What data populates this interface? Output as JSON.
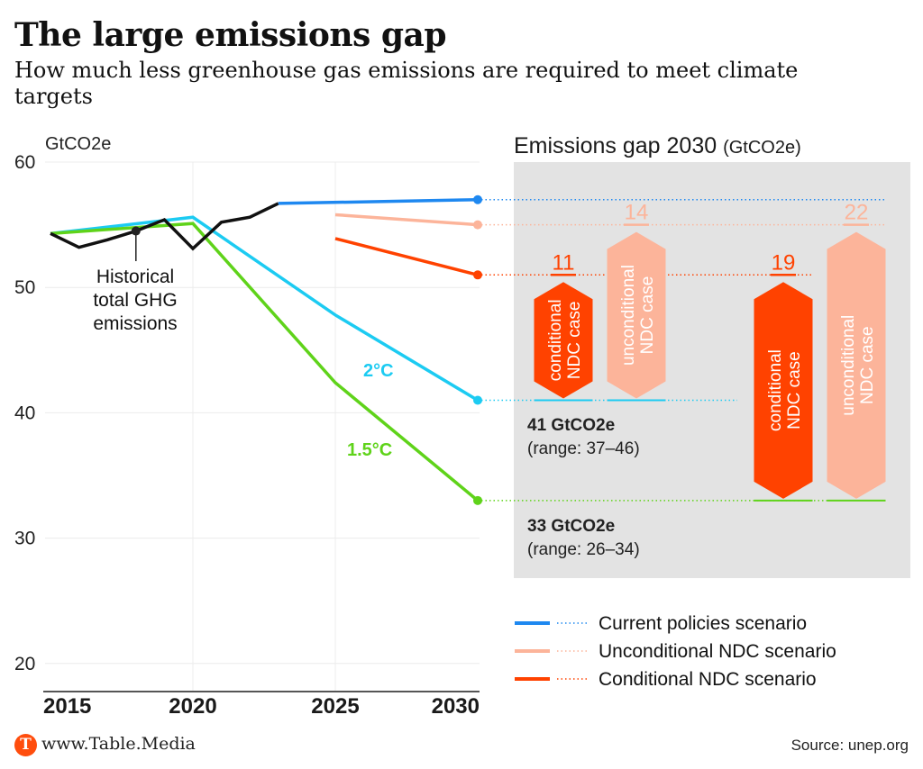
{
  "header": {
    "title": "The large emissions gap",
    "subtitle": "How much less greenhouse gas emissions are required to meet climate targets"
  },
  "footer": {
    "logo_letter": "T",
    "brand": "www.Table.Media",
    "source": "Source: unep.org"
  },
  "colors": {
    "current_policies": "#1e88f0",
    "unconditional": "#fcb49a",
    "conditional": "#ff4200",
    "two_degree": "#1ccbf2",
    "one_five_degree": "#5fd31a",
    "historical": "#111111",
    "gap_panel_bg": "#e3e3e3",
    "brand": "#ff4d0d"
  },
  "chart_data": {
    "type": "line",
    "title": "The large emissions gap",
    "ylabel": "GtCO2e",
    "xlabel": "",
    "xlim": [
      2015,
      2030
    ],
    "ylim": [
      17.5,
      60
    ],
    "x_ticks": [
      2015,
      2020,
      2025,
      2030
    ],
    "y_ticks": [
      20,
      30,
      40,
      50,
      60
    ],
    "grid": true,
    "series": [
      {
        "name": "Historical total GHG emissions",
        "key": "historical",
        "x": [
          2015,
          2016,
          2017,
          2018,
          2019,
          2020,
          2021,
          2022,
          2023
        ],
        "y": [
          54.3,
          53.2,
          53.8,
          54.5,
          55.4,
          53.1,
          55.2,
          55.6,
          56.7
        ]
      },
      {
        "name": "2°C",
        "key": "two_degree",
        "x": [
          2015,
          2020,
          2025,
          2030
        ],
        "y": [
          54.3,
          55.6,
          47.8,
          41
        ]
      },
      {
        "name": "1.5°C",
        "key": "one_five_degree",
        "x": [
          2015,
          2020,
          2025,
          2030
        ],
        "y": [
          54.3,
          55.1,
          42.4,
          33
        ]
      },
      {
        "name": "Current policies scenario",
        "key": "current_policies",
        "x": [
          2023,
          2030
        ],
        "y": [
          56.7,
          57
        ]
      },
      {
        "name": "Unconditional NDC scenario",
        "key": "unconditional",
        "x": [
          2025,
          2030
        ],
        "y": [
          55.8,
          55
        ]
      },
      {
        "name": "Conditional NDC scenario",
        "key": "conditional",
        "x": [
          2025,
          2030
        ],
        "y": [
          53.9,
          51
        ]
      }
    ],
    "annotations": {
      "historical_label": [
        "Historical",
        "total GHG",
        "emissions"
      ],
      "historical_marker": {
        "x": 2018,
        "y": 54.5
      },
      "two_degree_label": "2°C",
      "one_five_label": "1.5°C"
    },
    "gap_panel": {
      "title": "Emissions gap 2030",
      "title_unit": "(GtCO2e)",
      "targets": [
        {
          "key": "two_degree",
          "value": 41,
          "label": "41 GtCO2e",
          "range": "(range: 37–46)"
        },
        {
          "key": "one_five_degree",
          "value": 33,
          "label": "33 GtCO2e",
          "range": "(range: 26–34)"
        }
      ],
      "gaps": [
        {
          "target": "two_degree",
          "scenario": "conditional",
          "from": 51,
          "to": 41,
          "value": "11",
          "label_line1": "conditional",
          "label_line2": "NDC case"
        },
        {
          "target": "two_degree",
          "scenario": "unconditional",
          "from": 55,
          "to": 41,
          "value": "14",
          "label_line1": "unconditional",
          "label_line2": "NDC case"
        },
        {
          "target": "one_five_degree",
          "scenario": "conditional",
          "from": 51,
          "to": 33,
          "value": "19",
          "label_line1": "conditional",
          "label_line2": "NDC case"
        },
        {
          "target": "one_five_degree",
          "scenario": "unconditional",
          "from": 55,
          "to": 33,
          "value": "22",
          "label_line1": "unconditional",
          "label_line2": "NDC case"
        }
      ]
    },
    "legend": {
      "placement": "bottom-right",
      "items": [
        {
          "key": "current_policies",
          "label": "Current policies scenario"
        },
        {
          "key": "unconditional",
          "label": "Unconditional NDC scenario"
        },
        {
          "key": "conditional",
          "label": "Conditional NDC scenario"
        }
      ]
    }
  }
}
